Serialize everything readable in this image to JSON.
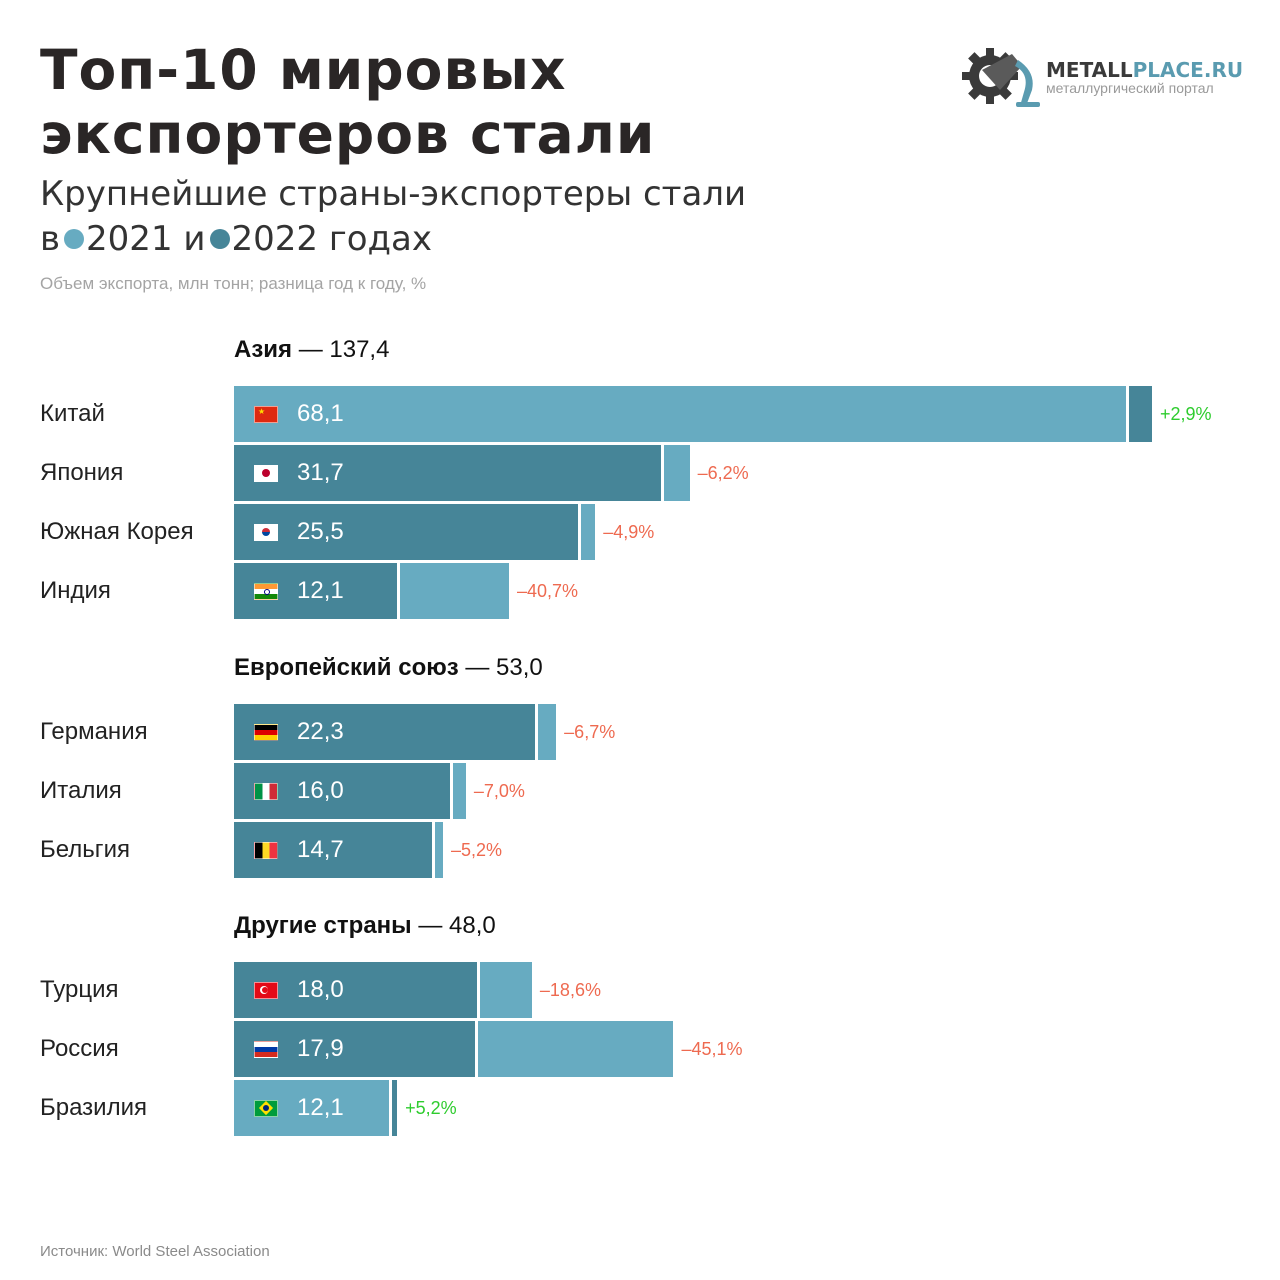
{
  "title_lines": [
    "Топ-10 мировых",
    "экспортеров стали"
  ],
  "subtitle": {
    "line1": "Крупнейшие страны-экспортеры стали",
    "prefix": "в",
    "year1": "2021",
    "conj": "и",
    "year2": "2022 годах"
  },
  "note": "Объем экспорта, млн тонн; разница год к году, %",
  "logo": {
    "name_a": "METALL",
    "name_b": "PLACE.RU",
    "tagline": "металлургический портал",
    "icon": "gear-ladle-icon"
  },
  "source": "Источник: World Steel Association",
  "colors": {
    "y2021": "#67abc1",
    "y2022": "#468598",
    "positive": "#2ecc2e",
    "negative": "#ee6a50",
    "logo_dark": "#3a3a3a",
    "logo_accent": "#5a9bb0"
  },
  "chart_data": {
    "type": "bar",
    "orientation": "horizontal",
    "series": [
      {
        "name": "2021",
        "color": "#67abc1"
      },
      {
        "name": "2022",
        "color": "#468598"
      }
    ],
    "groups": [
      {
        "name": "Азия",
        "total": "137,4",
        "items": [
          {
            "country": "Китай",
            "flag": "china-flag",
            "v2022": 68.1,
            "v2021": 66.2,
            "label": "68,1",
            "change": "+2,9%"
          },
          {
            "country": "Япония",
            "flag": "japan-flag",
            "v2022": 31.7,
            "v2021": 33.8,
            "label": "31,7",
            "change": "–6,2%"
          },
          {
            "country": "Южная Корея",
            "flag": "south-korea-flag",
            "v2022": 25.5,
            "v2021": 26.8,
            "label": "25,5",
            "change": "–4,9%"
          },
          {
            "country": "Индия",
            "flag": "india-flag",
            "v2022": 12.1,
            "v2021": 20.4,
            "label": "12,1",
            "change": "–40,7%"
          }
        ]
      },
      {
        "name": "Европейский союз",
        "total": "53,0",
        "items": [
          {
            "country": "Германия",
            "flag": "germany-flag",
            "v2022": 22.3,
            "v2021": 23.9,
            "label": "22,3",
            "change": "–6,7%"
          },
          {
            "country": "Италия",
            "flag": "italy-flag",
            "v2022": 16.0,
            "v2021": 17.2,
            "label": "16,0",
            "change": "–7,0%"
          },
          {
            "country": "Бельгия",
            "flag": "belgium-flag",
            "v2022": 14.7,
            "v2021": 15.5,
            "label": "14,7",
            "change": "–5,2%"
          }
        ]
      },
      {
        "name": "Другие страны",
        "total": "48,0",
        "items": [
          {
            "country": "Турция",
            "flag": "turkey-flag",
            "v2022": 18.0,
            "v2021": 22.1,
            "label": "18,0",
            "change": "–18,6%"
          },
          {
            "country": "Россия",
            "flag": "russia-flag",
            "v2022": 17.9,
            "v2021": 32.6,
            "label": "17,9",
            "change": "–45,1%"
          },
          {
            "country": "Бразилия",
            "flag": "brazil-flag",
            "v2022": 12.1,
            "v2021": 11.5,
            "label": "12,1",
            "change": "+5,2%"
          }
        ]
      }
    ]
  }
}
